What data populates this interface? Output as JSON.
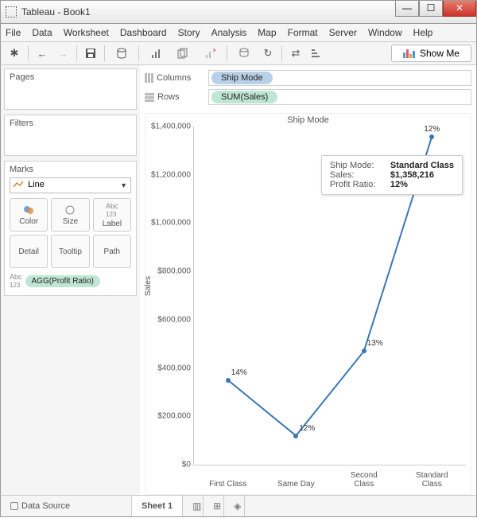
{
  "window": {
    "title": "Tableau - Book1"
  },
  "menu": [
    "File",
    "Data",
    "Worksheet",
    "Dashboard",
    "Story",
    "Analysis",
    "Map",
    "Format",
    "Server",
    "Window",
    "Help"
  ],
  "toolbar": {
    "showme": "Show Me"
  },
  "panels": {
    "pages": "Pages",
    "filters": "Filters",
    "marks": "Marks",
    "mark_type": "Line",
    "cells": [
      "Color",
      "Size",
      "Label",
      "Detail",
      "Tooltip",
      "Path"
    ],
    "abc_prefix": "Abc",
    "pill": "AGG(Profit Ratio)"
  },
  "shelves": {
    "columns_label": "Columns",
    "rows_label": "Rows",
    "columns_pill": "Ship Mode",
    "rows_pill": "SUM(Sales)"
  },
  "chart": {
    "title": "Ship Mode",
    "y_axis_label": "Sales",
    "line_color": "#3a78b5",
    "categories": [
      "First Class",
      "Same Day",
      "Second\nClass",
      "Standard\nClass"
    ],
    "values": [
      350000,
      120000,
      470000,
      1358216
    ],
    "point_labels": [
      "14%",
      "12%",
      "13%",
      "12%"
    ],
    "ylim": [
      0,
      1400000
    ],
    "ytick_step": 200000,
    "ytick_labels": [
      "$0",
      "$200,000",
      "$400,000",
      "$600,000",
      "$800,000",
      "$1,000,000",
      "$1,200,000",
      "$1,400,000"
    ]
  },
  "tooltip": {
    "rows": [
      {
        "label": "Ship Mode:",
        "value": "Standard Class"
      },
      {
        "label": "Sales:",
        "value": "$1,358,216"
      },
      {
        "label": "Profit Ratio:",
        "value": "12%"
      }
    ]
  },
  "bottom": {
    "datasource": "Data Source",
    "sheet": "Sheet 1"
  }
}
